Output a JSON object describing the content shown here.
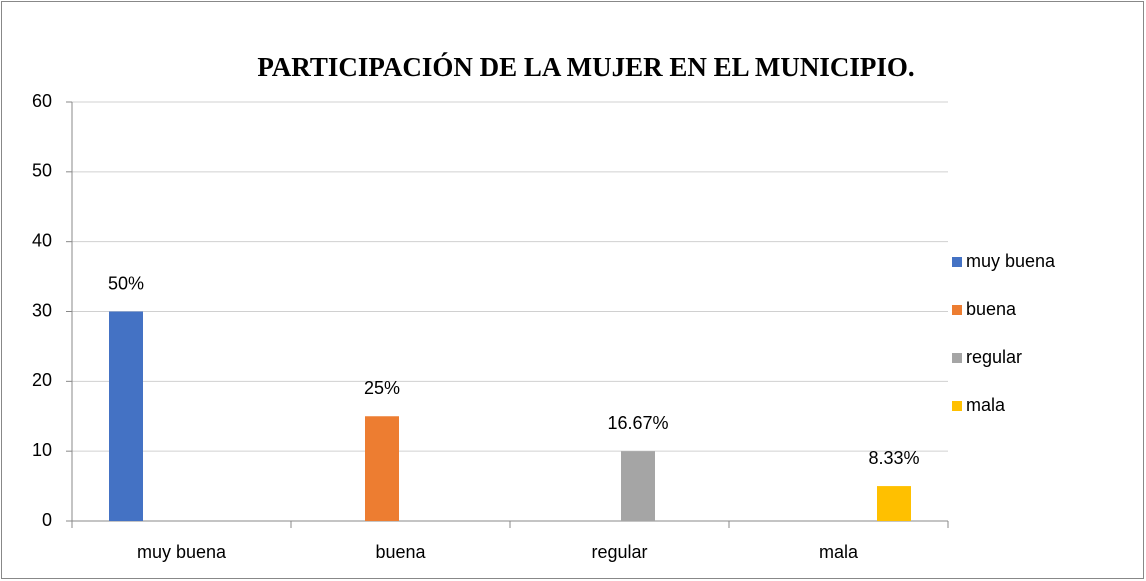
{
  "chart_data": {
    "type": "bar",
    "title": "PARTICIPACIÓN DE LA MUJER EN EL MUNICIPIO.",
    "categories": [
      "muy buena",
      "buena",
      "regular",
      "mala"
    ],
    "series": [
      {
        "name": "muy buena",
        "color": "#4472c4",
        "values": [
          30,
          null,
          null,
          null
        ]
      },
      {
        "name": "buena",
        "color": "#ed7d31",
        "values": [
          null,
          15,
          null,
          null
        ]
      },
      {
        "name": "regular",
        "color": "#a5a5a5",
        "values": [
          null,
          null,
          10,
          null
        ]
      },
      {
        "name": "mala",
        "color": "#ffc000",
        "values": [
          null,
          null,
          null,
          5
        ]
      }
    ],
    "annotations": [
      "50%",
      "25%",
      "16.67%",
      "8.33%"
    ],
    "ylim": [
      0,
      60
    ],
    "yticks": [
      0,
      10,
      20,
      30,
      40,
      50,
      60
    ],
    "grid": true,
    "legend": "right"
  }
}
